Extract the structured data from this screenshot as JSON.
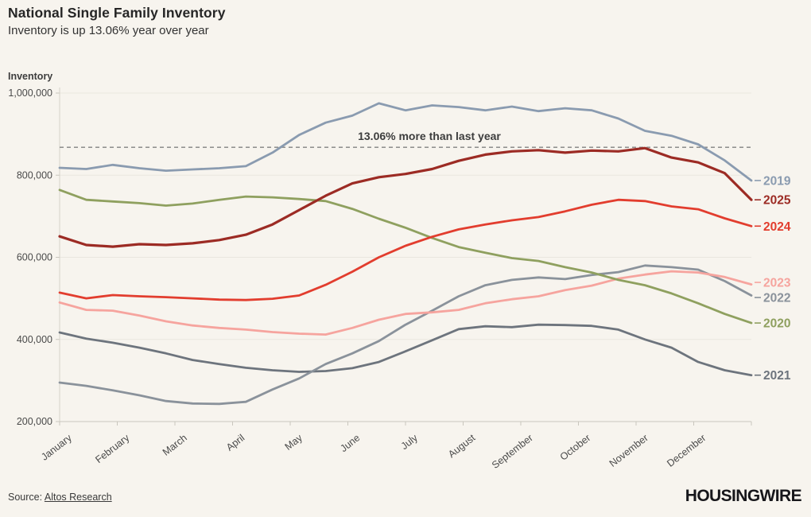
{
  "header": {
    "title": "National Single Family Inventory",
    "subtitle": "Inventory is up 13.06% year over year"
  },
  "chart_data": {
    "type": "line",
    "y_axis_title": "Inventory",
    "ylim": [
      200000,
      1000000
    ],
    "grid": true,
    "legend_position": "right-end-labels",
    "yticks": [
      {
        "value": 1000000,
        "label": "1,000,000"
      },
      {
        "value": 800000,
        "label": "800,000"
      },
      {
        "value": 600000,
        "label": "600,000"
      },
      {
        "value": 400000,
        "label": "400,000"
      },
      {
        "value": 200000,
        "label": "200,000"
      }
    ],
    "categories": [
      "January",
      "February",
      "March",
      "April",
      "May",
      "June",
      "July",
      "August",
      "September",
      "October",
      "November",
      "December"
    ],
    "annotation": {
      "text": "13.06% more than last year",
      "value": 868000
    },
    "series": [
      {
        "name": "2019",
        "color": "#8a9bb0",
        "values": [
          818000,
          815000,
          825000,
          817000,
          811000,
          814000,
          817000,
          822000,
          855000,
          898000,
          928000,
          945000,
          975000,
          958000,
          970000,
          966000,
          958000,
          967000,
          956000,
          963000,
          958000,
          938000,
          908000,
          896000,
          875000,
          836000,
          787000
        ]
      },
      {
        "name": "2025",
        "color": "#9c2b24",
        "values": [
          651000,
          630000,
          626000,
          632000,
          630000,
          634000,
          642000,
          655000,
          680000,
          715000,
          750000,
          780000,
          795000,
          803000,
          815000,
          835000,
          850000,
          858000,
          861000,
          855000,
          860000,
          858000,
          866000,
          843000,
          831000,
          805000,
          740000
        ]
      },
      {
        "name": "2024",
        "color": "#e23d2e",
        "values": [
          514000,
          500000,
          508000,
          505000,
          503000,
          500000,
          497000,
          496000,
          499000,
          507000,
          533000,
          565000,
          600000,
          628000,
          650000,
          668000,
          680000,
          690000,
          698000,
          712000,
          728000,
          740000,
          737000,
          724000,
          717000,
          695000,
          676000
        ]
      },
      {
        "name": "2023",
        "color": "#f6a49e",
        "values": [
          490000,
          472000,
          470000,
          458000,
          444000,
          434000,
          428000,
          424000,
          418000,
          414000,
          412000,
          428000,
          448000,
          462000,
          466000,
          472000,
          488000,
          498000,
          505000,
          520000,
          531000,
          548000,
          558000,
          566000,
          563000,
          552000,
          534000
        ]
      },
      {
        "name": "2022",
        "color": "#8a929b",
        "values": [
          295000,
          287000,
          276000,
          264000,
          250000,
          244000,
          243000,
          248000,
          278000,
          305000,
          340000,
          366000,
          396000,
          436000,
          470000,
          505000,
          532000,
          545000,
          551000,
          547000,
          557000,
          564000,
          580000,
          576000,
          570000,
          542000,
          507000
        ]
      },
      {
        "name": "2020",
        "color": "#8fa05f",
        "values": [
          764000,
          740000,
          736000,
          732000,
          726000,
          731000,
          740000,
          748000,
          746000,
          742000,
          737000,
          718000,
          694000,
          672000,
          647000,
          625000,
          611000,
          598000,
          591000,
          576000,
          563000,
          545000,
          532000,
          512000,
          488000,
          462000,
          440000
        ]
      },
      {
        "name": "2021",
        "color": "#6d747d",
        "values": [
          417000,
          402000,
          392000,
          380000,
          366000,
          350000,
          340000,
          331000,
          325000,
          321000,
          323000,
          330000,
          345000,
          371000,
          398000,
          425000,
          432000,
          430000,
          436000,
          435000,
          433000,
          424000,
          400000,
          380000,
          345000,
          325000,
          313000
        ]
      }
    ]
  },
  "footer": {
    "source_prefix": "Source:",
    "source_link": "Altos Research",
    "brand": "HOUSINGWIRE"
  }
}
